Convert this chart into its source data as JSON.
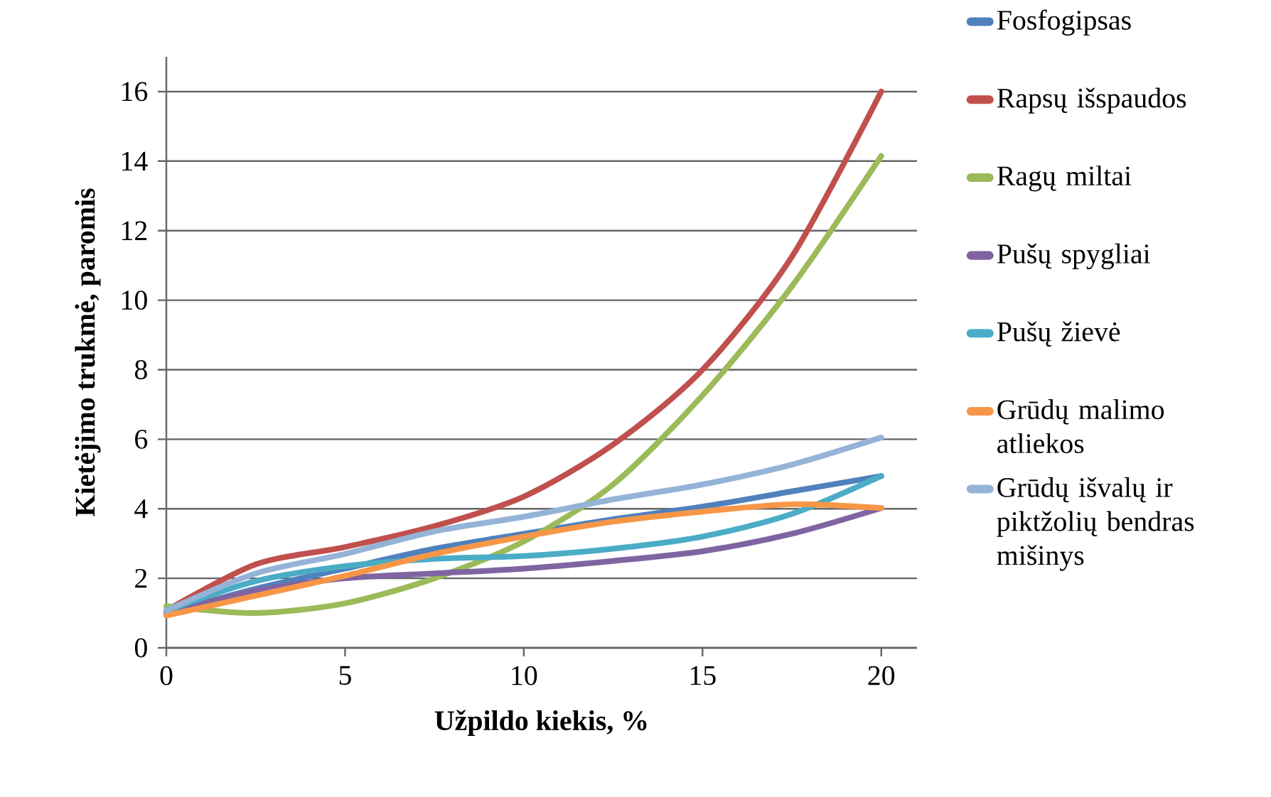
{
  "chart_data": {
    "type": "line",
    "xlabel": "Užpildo kiekis, %",
    "ylabel": "Kietėjimo trukmė, paromis",
    "x": [
      0,
      2.5,
      5,
      7.5,
      10,
      12.5,
      15,
      17.5,
      20
    ],
    "series": [
      {
        "name": "Fosfogipsas",
        "color": "#4f81bd",
        "values": [
          1.0,
          1.7,
          2.28,
          2.85,
          3.28,
          3.7,
          4.06,
          4.5,
          4.94
        ]
      },
      {
        "name": "Rapsų išspaudos",
        "color": "#c0504d",
        "values": [
          1.07,
          2.4,
          2.9,
          3.5,
          4.35,
          5.85,
          8.0,
          11.25,
          16.0
        ]
      },
      {
        "name": "Ragų miltai",
        "color": "#9bbb59",
        "values": [
          1.2,
          1.0,
          1.28,
          2.0,
          3.06,
          4.7,
          7.26,
          10.4,
          14.15
        ]
      },
      {
        "name": "Pušų spygliai",
        "color": "#8064a2",
        "values": [
          1.0,
          1.64,
          2.0,
          2.14,
          2.28,
          2.5,
          2.78,
          3.28,
          4.02
        ]
      },
      {
        "name": "Pušų žievė",
        "color": "#4bacc6",
        "values": [
          1.07,
          1.92,
          2.35,
          2.56,
          2.64,
          2.85,
          3.2,
          3.85,
          4.94
        ]
      },
      {
        "name": "Grūdų malimo atliekos",
        "color": "#f79646",
        "values": [
          0.93,
          1.5,
          2.07,
          2.7,
          3.2,
          3.63,
          3.92,
          4.13,
          4.02
        ]
      },
      {
        "name": "Grūdų išvalų ir piktžolių bendras mišinys",
        "color": "#95b3d7",
        "values": [
          1.07,
          2.14,
          2.7,
          3.35,
          3.77,
          4.27,
          4.7,
          5.27,
          6.05
        ]
      }
    ],
    "xlim": [
      0,
      21
    ],
    "ylim": [
      0,
      17
    ],
    "xticks": [
      0,
      5,
      10,
      15,
      20
    ],
    "yticks": [
      0,
      2,
      4,
      6,
      8,
      10,
      12,
      14,
      16
    ],
    "grid": "y",
    "legend": "right"
  }
}
